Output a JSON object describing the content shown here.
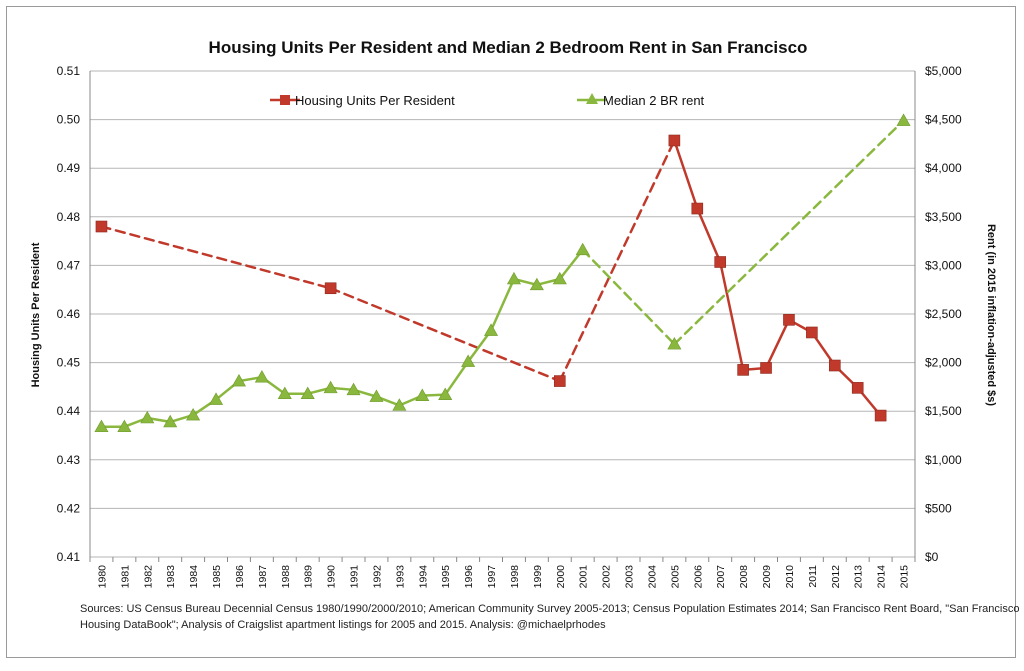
{
  "chart_data": {
    "type": "line",
    "title": "Housing Units Per Resident and Median 2 Bedroom Rent in San Francisco",
    "ylabel_left": "Housing Units Per Resident",
    "ylabel_right": "Rent (in 2015 inflation-adjusted $s)",
    "ylim_left": [
      0.41,
      0.51
    ],
    "ylim_right": [
      0,
      5000
    ],
    "yticks_left": [
      "0.41",
      "0.42",
      "0.43",
      "0.44",
      "0.45",
      "0.46",
      "0.47",
      "0.48",
      "0.49",
      "0.50",
      "0.51"
    ],
    "yticks_right": [
      "$0",
      "$500",
      "$1,000",
      "$1,500",
      "$2,000",
      "$2,500",
      "$3,000",
      "$3,500",
      "$4,000",
      "$4,500",
      "$5,000"
    ],
    "x_categories": [
      "1980",
      "1981",
      "1982",
      "1983",
      "1984",
      "1985",
      "1986",
      "1987",
      "1988",
      "1989",
      "1990",
      "1991",
      "1992",
      "1993",
      "1994",
      "1995",
      "1996",
      "1997",
      "1998",
      "1999",
      "2000",
      "2001",
      "2002",
      "2003",
      "2004",
      "2005",
      "2006",
      "2007",
      "2008",
      "2009",
      "2010",
      "2011",
      "2012",
      "2013",
      "2014",
      "2015"
    ],
    "grid": true,
    "legend_position": "top",
    "series": [
      {
        "name": "Housing Units Per Resident",
        "axis": "left",
        "color": "#c0392b",
        "marker": "square",
        "points": [
          {
            "x": "1980",
            "y": 0.478
          },
          {
            "x": "1990",
            "y": 0.4653
          },
          {
            "x": "2000",
            "y": 0.4462
          },
          {
            "x": "2005",
            "y": 0.4957
          },
          {
            "x": "2006",
            "y": 0.4817
          },
          {
            "x": "2007",
            "y": 0.4707
          },
          {
            "x": "2008",
            "y": 0.4485
          },
          {
            "x": "2009",
            "y": 0.4489
          },
          {
            "x": "2010",
            "y": 0.4588
          },
          {
            "x": "2011",
            "y": 0.4562
          },
          {
            "x": "2012",
            "y": 0.4494
          },
          {
            "x": "2013",
            "y": 0.4448
          },
          {
            "x": "2014",
            "y": 0.4391
          }
        ],
        "dashed_segments": [
          [
            "1980",
            "1990"
          ],
          [
            "1990",
            "2000"
          ],
          [
            "2000",
            "2005"
          ]
        ]
      },
      {
        "name": "Median 2 BR rent",
        "axis": "right",
        "color": "#8ab83e",
        "marker": "triangle",
        "points": [
          {
            "x": "1980",
            "y": 1340
          },
          {
            "x": "1981",
            "y": 1340
          },
          {
            "x": "1982",
            "y": 1430
          },
          {
            "x": "1983",
            "y": 1390
          },
          {
            "x": "1984",
            "y": 1460
          },
          {
            "x": "1985",
            "y": 1620
          },
          {
            "x": "1986",
            "y": 1810
          },
          {
            "x": "1987",
            "y": 1850
          },
          {
            "x": "1988",
            "y": 1680
          },
          {
            "x": "1989",
            "y": 1680
          },
          {
            "x": "1990",
            "y": 1740
          },
          {
            "x": "1991",
            "y": 1720
          },
          {
            "x": "1992",
            "y": 1650
          },
          {
            "x": "1993",
            "y": 1560
          },
          {
            "x": "1994",
            "y": 1660
          },
          {
            "x": "1995",
            "y": 1670
          },
          {
            "x": "1996",
            "y": 2010
          },
          {
            "x": "1997",
            "y": 2330
          },
          {
            "x": "1998",
            "y": 2860
          },
          {
            "x": "1999",
            "y": 2800
          },
          {
            "x": "2000",
            "y": 2860
          },
          {
            "x": "2001",
            "y": 3160
          },
          {
            "x": "2005",
            "y": 2190
          },
          {
            "x": "2015",
            "y": 4490
          }
        ],
        "dashed_segments": [
          [
            "2001",
            "2005"
          ],
          [
            "2005",
            "2015"
          ]
        ]
      }
    ]
  },
  "source_note_line1": "Sources: US Census Bureau Decennial Census 1980/1990/2000/2010; American Community Survey 2005-2013; Census Population Estimates 2014; San Francisco Rent Board, \"San Francisco",
  "source_note_line2": "Housing DataBook\"; Analysis of Craigslist apartment listings for 2005 and 2015. Analysis: @michaelprhodes"
}
